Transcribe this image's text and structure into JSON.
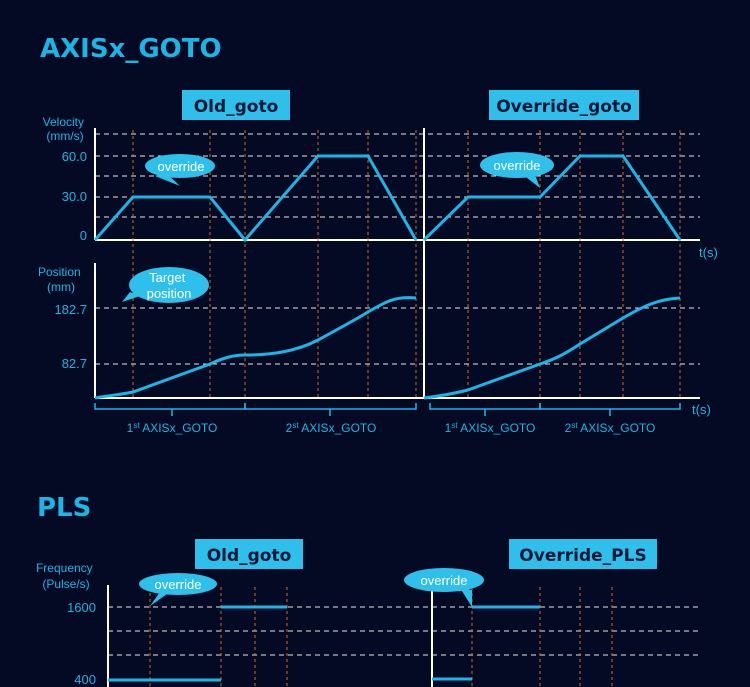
{
  "colors": {
    "background": "#050a24",
    "accent": "#19b6e6",
    "label_bg": "#2ec0ea",
    "label_text": "#0b1736",
    "axis": "#ffffff",
    "grid": "#ffffff",
    "marker": "#d4681c"
  },
  "goto_section": {
    "title": "AXISx_GOTO",
    "left_panel_title": "Old_goto",
    "right_panel_title": "Override_goto",
    "velocity_axis": {
      "label_line1": "Velocity",
      "label_line2": "(mm/s)",
      "ticks": [
        "60.0",
        "30.0",
        "0"
      ]
    },
    "position_axis": {
      "label_line1": "Position",
      "label_line2": "(mm)",
      "ticks": [
        "182.7",
        "82.7"
      ]
    },
    "time_label": "t(s)",
    "override_bubble": "override",
    "target_bubble_line1": "Target",
    "target_bubble_line2": "position",
    "segments": {
      "first_num": "1",
      "second_num": "2",
      "first_suffix": "st",
      "second_suffix": "st",
      "name": " AXISx_GOTO"
    }
  },
  "pls_section": {
    "title": "PLS",
    "left_panel_title": "Old_goto",
    "right_panel_title": "Override_PLS",
    "frequency_axis": {
      "label_line1": "Frequency",
      "label_line2": "(Pulse/s)",
      "ticks": [
        "1600",
        "400"
      ]
    },
    "override_bubble": "override"
  }
}
